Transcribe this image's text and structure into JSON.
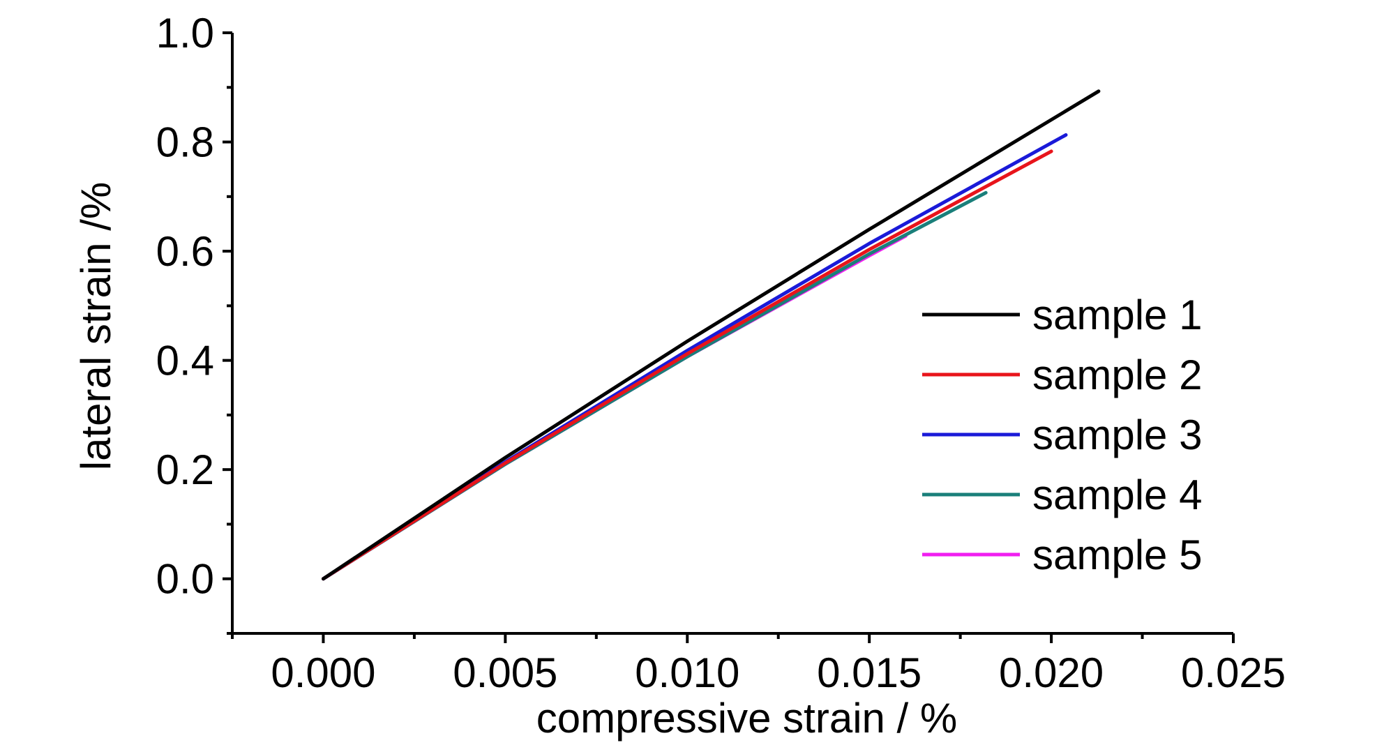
{
  "chart_data": {
    "type": "line",
    "title": "",
    "xlabel": "compressive strain / %",
    "ylabel": "lateral strain /%",
    "xlim": [
      -0.0025,
      0.025
    ],
    "ylim": [
      -0.1,
      1.0
    ],
    "x_ticks": [
      "0.000",
      "0.005",
      "0.010",
      "0.015",
      "0.020",
      "0.025"
    ],
    "y_ticks": [
      "0.0",
      "0.2",
      "0.4",
      "0.6",
      "0.8",
      "1.0"
    ],
    "grid": false,
    "legend_position": "right",
    "series": [
      {
        "name": "sample 1",
        "color": "#000000",
        "x": [
          0.0,
          0.005,
          0.01,
          0.015,
          0.0213
        ],
        "y": [
          0.0,
          0.222,
          0.435,
          0.64,
          0.893
        ]
      },
      {
        "name": "sample 2",
        "color": "#e8141b",
        "x": [
          0.0,
          0.005,
          0.01,
          0.015,
          0.02
        ],
        "y": [
          0.0,
          0.212,
          0.412,
          0.603,
          0.783
        ]
      },
      {
        "name": "sample 3",
        "color": "#1a1ad8",
        "x": [
          0.0,
          0.005,
          0.01,
          0.015,
          0.0204
        ],
        "y": [
          0.0,
          0.214,
          0.418,
          0.614,
          0.813
        ]
      },
      {
        "name": "sample 4",
        "color": "#1a7f7a",
        "x": [
          0.0,
          0.005,
          0.01,
          0.015,
          0.0182
        ],
        "y": [
          0.0,
          0.21,
          0.407,
          0.595,
          0.707
        ]
      },
      {
        "name": "sample 5",
        "color": "#f01ef0",
        "x": [
          0.0,
          0.005,
          0.01,
          0.015,
          0.016
        ],
        "y": [
          0.0,
          0.21,
          0.407,
          0.592,
          0.628
        ]
      }
    ]
  }
}
